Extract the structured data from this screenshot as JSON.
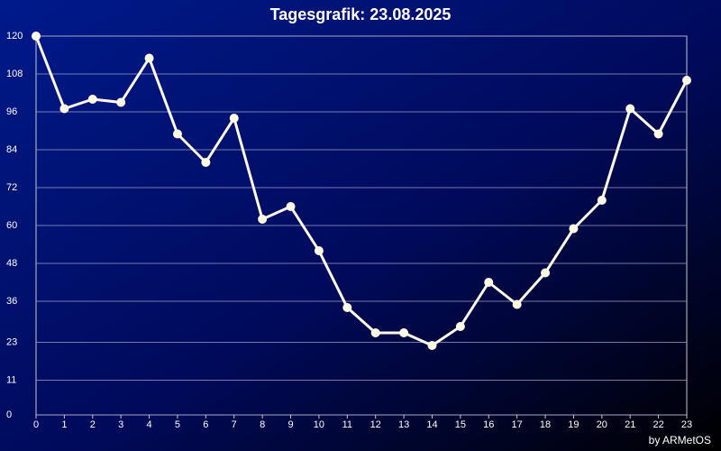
{
  "chart_data": {
    "type": "line",
    "title": "Tagesgrafik: 23.08.2025",
    "credit": "by ARMetOS",
    "x": [
      0,
      1,
      2,
      3,
      4,
      5,
      6,
      7,
      8,
      9,
      10,
      11,
      12,
      13,
      14,
      15,
      16,
      17,
      18,
      19,
      20,
      21,
      22,
      23
    ],
    "xlim": [
      0,
      23
    ],
    "xticks": [
      0,
      1,
      2,
      3,
      4,
      5,
      6,
      7,
      8,
      9,
      10,
      11,
      12,
      13,
      14,
      15,
      16,
      17,
      18,
      19,
      20,
      21,
      22,
      23
    ],
    "ylim": [
      0,
      120
    ],
    "yticks": [
      0,
      11,
      23,
      36,
      48,
      60,
      72,
      84,
      96,
      108,
      120
    ],
    "grid": true,
    "series": [
      {
        "color": "#fffbe6",
        "values": [
          120,
          97,
          100,
          99,
          113,
          89,
          80,
          94,
          62,
          66,
          52,
          34,
          26,
          26,
          22,
          28,
          42,
          35,
          45,
          59,
          68,
          97,
          89,
          106
        ]
      }
    ]
  }
}
